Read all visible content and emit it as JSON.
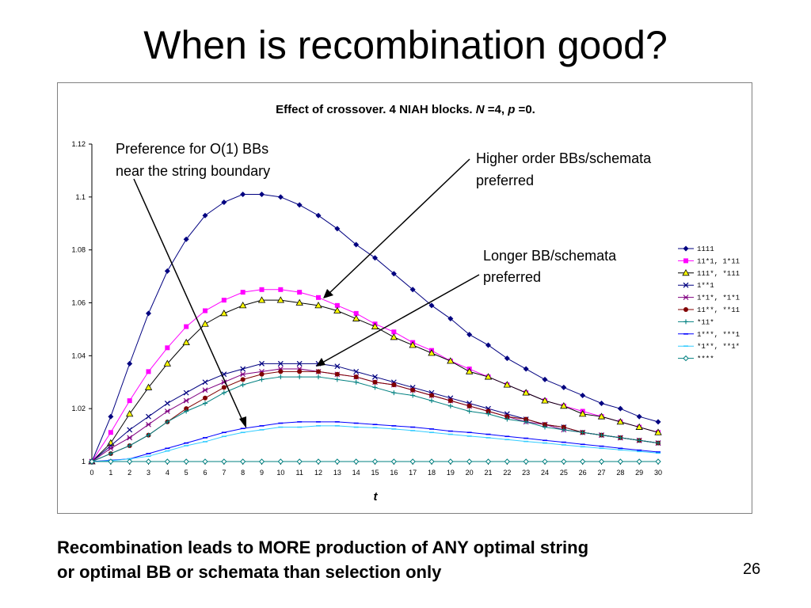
{
  "slide": {
    "title": "When is recombination good?",
    "caption_line1": "Recombination leads to MORE production of ANY optimal string",
    "caption_line2": "or optimal BB or schemata than selection only",
    "page_number": "26"
  },
  "annotations": {
    "left_line1": "Preference for O(1) BBs",
    "left_line2": "near the string boundary",
    "upper_right_line1": "Higher order BBs/schemata",
    "upper_right_line2": "preferred",
    "middle_right_line1": "Longer BB/schemata",
    "middle_right_line2": "preferred"
  },
  "chart_data": {
    "type": "line",
    "title_parts": [
      "Effect of crossover. 4 NIAH blocks. ",
      "N",
      " =4, ",
      "p",
      " =0."
    ],
    "xlabel": "t",
    "ylabel": "",
    "xlim": [
      0,
      30
    ],
    "ylim": [
      1,
      1.12
    ],
    "y_ticks": [
      "1",
      "1.02",
      "1.04",
      "1.06",
      "1.08",
      "1.1",
      "1.12"
    ],
    "x": [
      0,
      1,
      2,
      3,
      4,
      5,
      6,
      7,
      8,
      9,
      10,
      11,
      12,
      13,
      14,
      15,
      16,
      17,
      18,
      19,
      20,
      21,
      22,
      23,
      24,
      25,
      26,
      27,
      28,
      29,
      30
    ],
    "legend_position": "right",
    "series": [
      {
        "name": "1111",
        "color": "#000080",
        "marker": "diamond",
        "values": [
          1.0,
          1.017,
          1.037,
          1.056,
          1.072,
          1.084,
          1.093,
          1.098,
          1.101,
          1.101,
          1.1,
          1.097,
          1.093,
          1.088,
          1.082,
          1.077,
          1.071,
          1.065,
          1.059,
          1.054,
          1.048,
          1.044,
          1.039,
          1.035,
          1.031,
          1.028,
          1.025,
          1.022,
          1.02,
          1.017,
          1.015
        ]
      },
      {
        "name": "11*1, 1*11",
        "color": "#ff00ff",
        "marker": "square",
        "values": [
          1.0,
          1.011,
          1.023,
          1.034,
          1.043,
          1.051,
          1.057,
          1.061,
          1.064,
          1.065,
          1.065,
          1.064,
          1.062,
          1.059,
          1.056,
          1.052,
          1.049,
          1.045,
          1.042,
          1.038,
          1.035,
          1.032,
          1.029,
          1.026,
          1.023,
          1.021,
          1.019,
          1.017,
          1.015,
          1.013,
          1.011
        ]
      },
      {
        "name": "111*, *111",
        "color": "#000000",
        "marker": "triangle",
        "fill": "#ffff00",
        "values": [
          1.0,
          1.007,
          1.018,
          1.028,
          1.037,
          1.045,
          1.052,
          1.056,
          1.059,
          1.061,
          1.061,
          1.06,
          1.059,
          1.057,
          1.054,
          1.051,
          1.047,
          1.044,
          1.041,
          1.038,
          1.034,
          1.032,
          1.029,
          1.026,
          1.023,
          1.021,
          1.018,
          1.017,
          1.015,
          1.013,
          1.011
        ]
      },
      {
        "name": "1**1",
        "color": "#000080",
        "marker": "x",
        "values": [
          1.0,
          1.006,
          1.012,
          1.017,
          1.022,
          1.026,
          1.03,
          1.033,
          1.035,
          1.037,
          1.037,
          1.037,
          1.037,
          1.036,
          1.034,
          1.032,
          1.03,
          1.028,
          1.026,
          1.024,
          1.022,
          1.02,
          1.018,
          1.016,
          1.014,
          1.013,
          1.011,
          1.01,
          1.009,
          1.008,
          1.007
        ]
      },
      {
        "name": "1*1*, *1*1",
        "color": "#800080",
        "marker": "star",
        "values": [
          1.0,
          1.005,
          1.009,
          1.014,
          1.019,
          1.023,
          1.027,
          1.03,
          1.033,
          1.034,
          1.035,
          1.035,
          1.034,
          1.033,
          1.032,
          1.03,
          1.029,
          1.027,
          1.025,
          1.023,
          1.021,
          1.019,
          1.017,
          1.015,
          1.014,
          1.012,
          1.011,
          1.01,
          1.009,
          1.008,
          1.007
        ]
      },
      {
        "name": "11**, **11",
        "color": "#800000",
        "marker": "circle",
        "values": [
          1.0,
          1.003,
          1.006,
          1.01,
          1.015,
          1.02,
          1.024,
          1.028,
          1.031,
          1.033,
          1.034,
          1.034,
          1.034,
          1.033,
          1.032,
          1.03,
          1.029,
          1.027,
          1.025,
          1.023,
          1.021,
          1.019,
          1.017,
          1.016,
          1.014,
          1.013,
          1.011,
          1.01,
          1.009,
          1.008,
          1.007
        ]
      },
      {
        "name": "*11*",
        "color": "#008080",
        "marker": "plus",
        "values": [
          1.0,
          1.003,
          1.006,
          1.01,
          1.015,
          1.019,
          1.022,
          1.026,
          1.029,
          1.031,
          1.032,
          1.032,
          1.032,
          1.031,
          1.03,
          1.028,
          1.026,
          1.025,
          1.023,
          1.021,
          1.019,
          1.018,
          1.016,
          1.015,
          1.013,
          1.012,
          1.011,
          1.01,
          1.009,
          1.008,
          1.007
        ]
      },
      {
        "name": "1***, ***1",
        "color": "#0000ff",
        "marker": "dash",
        "values": [
          1.0,
          1.0005,
          1.001,
          1.003,
          1.005,
          1.007,
          1.009,
          1.011,
          1.0125,
          1.0135,
          1.0145,
          1.015,
          1.015,
          1.015,
          1.0145,
          1.014,
          1.0135,
          1.013,
          1.0123,
          1.0115,
          1.011,
          1.0103,
          1.0095,
          1.0088,
          1.008,
          1.0073,
          1.0065,
          1.0058,
          1.005,
          1.0043,
          1.0036
        ]
      },
      {
        "name": "*1**, **1*",
        "color": "#33ccff",
        "marker": "dash",
        "values": [
          1.0,
          1.0003,
          1.001,
          1.002,
          1.004,
          1.006,
          1.0075,
          1.0095,
          1.011,
          1.012,
          1.013,
          1.013,
          1.0135,
          1.0135,
          1.013,
          1.0128,
          1.0123,
          1.0117,
          1.011,
          1.0103,
          1.0096,
          1.009,
          1.0083,
          1.0076,
          1.007,
          1.0063,
          1.0056,
          1.005,
          1.0044,
          1.0038,
          1.0032
        ]
      },
      {
        "name": "****",
        "color": "#008080",
        "marker": "diamond-open",
        "values": [
          1,
          1,
          1,
          1,
          1,
          1,
          1,
          1,
          1,
          1,
          1,
          1,
          1,
          1,
          1,
          1,
          1,
          1,
          1,
          1,
          1,
          1,
          1,
          1,
          1,
          1,
          1,
          1,
          1,
          1,
          1
        ]
      }
    ]
  }
}
